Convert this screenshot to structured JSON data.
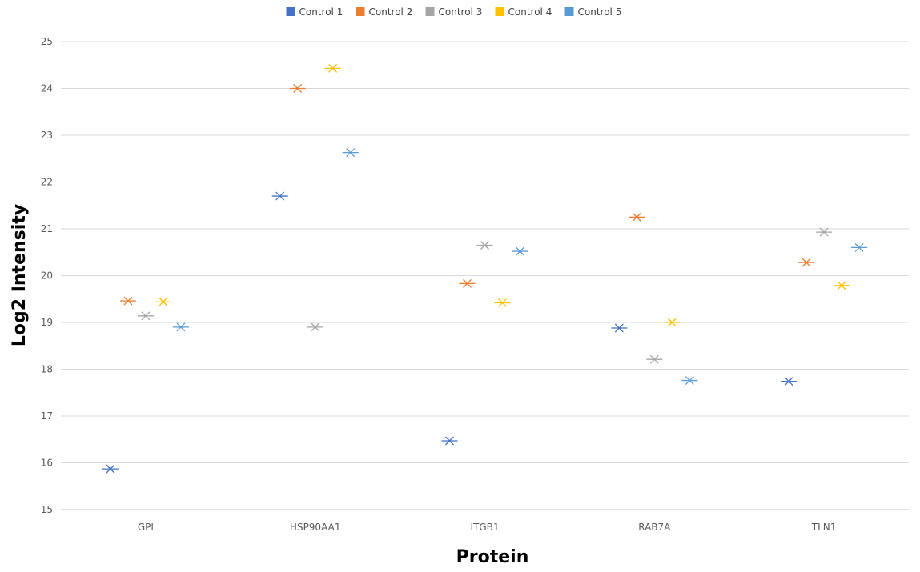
{
  "chart_data": {
    "type": "scatter",
    "title": "",
    "xlabel": "Protein",
    "ylabel": "Log2 Intensity",
    "categories": [
      "GPI",
      "HSP90AA1",
      "ITGB1",
      "RAB7A",
      "TLN1"
    ],
    "ylim": [
      15,
      25
    ],
    "yticks": [
      "15",
      "16",
      "17",
      "18",
      "19",
      "20",
      "21",
      "22",
      "23",
      "24",
      "25"
    ],
    "grid": true,
    "legend_position": "top",
    "marker": "star-cross",
    "series": [
      {
        "name": "Control 1",
        "color": "#4472C4",
        "values": [
          15.87,
          21.7,
          16.47,
          18.88,
          17.74
        ]
      },
      {
        "name": "Control 2",
        "color": "#ED7D31",
        "values": [
          19.46,
          24.0,
          19.83,
          21.25,
          20.28
        ]
      },
      {
        "name": "Control 3",
        "color": "#A5A5A5",
        "values": [
          19.14,
          18.9,
          20.65,
          18.21,
          20.93
        ]
      },
      {
        "name": "Control 4",
        "color": "#FFC000",
        "values": [
          19.44,
          24.43,
          19.42,
          19.0,
          19.79
        ]
      },
      {
        "name": "Control 5",
        "color": "#5B9BD5",
        "values": [
          18.9,
          22.63,
          20.52,
          17.76,
          20.6
        ]
      }
    ]
  }
}
